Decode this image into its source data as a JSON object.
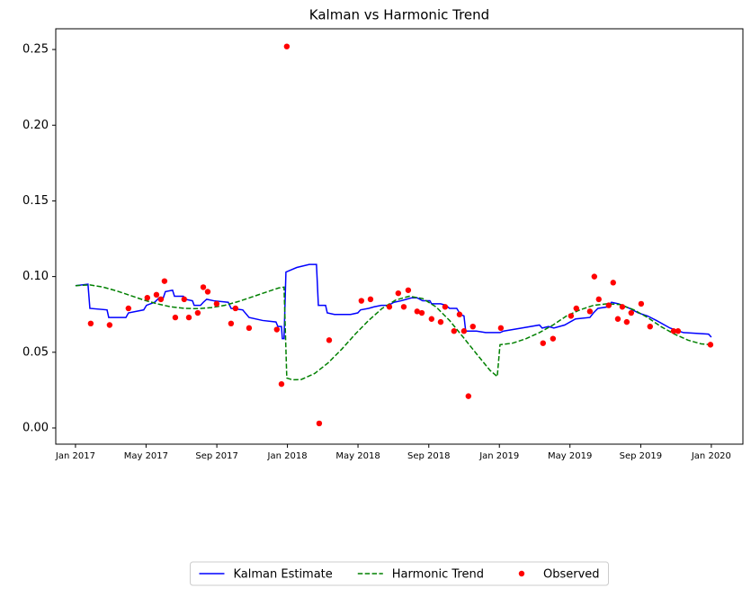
{
  "chart_data": {
    "type": "line",
    "title": "Kalman vs Harmonic Trend",
    "xlim": [
      2016.907,
      2020.149
    ],
    "ylim": [
      -0.0107,
      0.2637
    ],
    "xticks": [
      {
        "value": 2017,
        "label": "Jan 2017"
      },
      {
        "value": 2017.333,
        "label": "May 2017"
      },
      {
        "value": 2017.667,
        "label": "Sep 2017"
      },
      {
        "value": 2018,
        "label": "Jan 2018"
      },
      {
        "value": 2018.333,
        "label": "May 2018"
      },
      {
        "value": 2018.667,
        "label": "Sep 2018"
      },
      {
        "value": 2019,
        "label": "Jan 2019"
      },
      {
        "value": 2019.333,
        "label": "May 2019"
      },
      {
        "value": 2019.667,
        "label": "Sep 2019"
      },
      {
        "value": 2020,
        "label": "Jan 2020"
      }
    ],
    "yticks": [
      {
        "value": 0,
        "label": "0.00"
      },
      0.05,
      {
        "value": 0.1,
        "label": "0.10"
      },
      0.15,
      {
        "value": 0.2,
        "label": "0.20"
      },
      0.25
    ],
    "legend": "lower center",
    "series": [
      {
        "name": "Kalman Estimate",
        "type": "line",
        "color": "#0000ff",
        "dash": "solid",
        "x": [
          2017.0,
          2017.059,
          2017.068,
          2017.149,
          2017.157,
          2017.238,
          2017.25,
          2017.322,
          2017.335,
          2017.373,
          2017.395,
          2017.412,
          2017.424,
          2017.458,
          2017.467,
          2017.509,
          2017.518,
          2017.552,
          2017.56,
          2017.59,
          2017.603,
          2017.619,
          2017.653,
          2017.721,
          2017.734,
          2017.789,
          2017.819,
          2017.883,
          2017.946,
          2017.955,
          2017.972,
          2017.976,
          2017.984,
          2017.993,
          2018.044,
          2018.103,
          2018.137,
          2018.146,
          2018.18,
          2018.188,
          2018.222,
          2018.298,
          2018.332,
          2018.345,
          2018.383,
          2018.409,
          2018.443,
          2018.477,
          2018.502,
          2018.536,
          2018.561,
          2018.587,
          2018.612,
          2018.638,
          2018.672,
          2018.68,
          2018.723,
          2018.748,
          2018.765,
          2018.799,
          2018.816,
          2018.833,
          2018.841,
          2018.892,
          2018.935,
          2019.003,
          2019.02,
          2019.105,
          2019.189,
          2019.202,
          2019.232,
          2019.257,
          2019.308,
          2019.359,
          2019.427,
          2019.444,
          2019.465,
          2019.512,
          2019.529,
          2019.563,
          2019.614,
          2019.656,
          2019.699,
          2019.741,
          2019.805,
          2019.868,
          2019.987,
          2020.0
        ],
        "values": [
          0.094,
          0.095,
          0.079,
          0.078,
          0.073,
          0.073,
          0.076,
          0.078,
          0.081,
          0.083,
          0.086,
          0.085,
          0.09,
          0.091,
          0.087,
          0.087,
          0.085,
          0.084,
          0.081,
          0.081,
          0.083,
          0.085,
          0.084,
          0.083,
          0.079,
          0.078,
          0.073,
          0.071,
          0.07,
          0.067,
          0.067,
          0.059,
          0.059,
          0.103,
          0.106,
          0.108,
          0.108,
          0.081,
          0.081,
          0.076,
          0.075,
          0.075,
          0.076,
          0.078,
          0.079,
          0.08,
          0.081,
          0.081,
          0.083,
          0.084,
          0.085,
          0.086,
          0.086,
          0.084,
          0.084,
          0.082,
          0.082,
          0.081,
          0.079,
          0.079,
          0.075,
          0.074,
          0.064,
          0.064,
          0.063,
          0.063,
          0.064,
          0.066,
          0.068,
          0.066,
          0.067,
          0.066,
          0.068,
          0.072,
          0.073,
          0.076,
          0.079,
          0.08,
          0.083,
          0.082,
          0.079,
          0.076,
          0.074,
          0.071,
          0.066,
          0.063,
          0.062,
          0.06
        ]
      },
      {
        "name": "Harmonic Trend",
        "type": "line",
        "color": "#008000",
        "dash": "dashed",
        "x": [
          2017.0,
          2017.068,
          2017.132,
          2017.195,
          2017.259,
          2017.322,
          2017.386,
          2017.45,
          2017.513,
          2017.577,
          2017.641,
          2017.704,
          2017.768,
          2017.832,
          2017.895,
          2017.959,
          2017.984,
          2017.997,
          2018.023,
          2018.065,
          2018.129,
          2018.192,
          2018.256,
          2018.32,
          2018.383,
          2018.447,
          2018.511,
          2018.574,
          2018.638,
          2018.701,
          2018.765,
          2018.829,
          2018.892,
          2018.956,
          2018.99,
          2019.003,
          2019.062,
          2019.126,
          2019.189,
          2019.253,
          2019.317,
          2019.38,
          2019.444,
          2019.508,
          2019.571,
          2019.635,
          2019.699,
          2019.762,
          2019.826,
          2019.89,
          2019.953,
          2020.0
        ],
        "values": [
          0.094,
          0.0945,
          0.093,
          0.0905,
          0.0875,
          0.0845,
          0.082,
          0.08,
          0.079,
          0.0788,
          0.0795,
          0.081,
          0.0835,
          0.0865,
          0.0895,
          0.0925,
          0.093,
          0.033,
          0.0318,
          0.032,
          0.036,
          0.043,
          0.052,
          0.062,
          0.071,
          0.079,
          0.0845,
          0.087,
          0.0855,
          0.08,
          0.071,
          0.06,
          0.049,
          0.038,
          0.034,
          0.055,
          0.056,
          0.059,
          0.063,
          0.068,
          0.074,
          0.078,
          0.081,
          0.082,
          0.0815,
          0.078,
          0.073,
          0.067,
          0.062,
          0.058,
          0.0555,
          0.055
        ]
      },
      {
        "name": "Observed",
        "type": "scatter",
        "color": "#ff0000",
        "x": [
          2017.072,
          2017.161,
          2017.25,
          2017.339,
          2017.382,
          2017.403,
          2017.42,
          2017.471,
          2017.513,
          2017.535,
          2017.577,
          2017.603,
          2017.624,
          2017.666,
          2017.734,
          2017.755,
          2017.819,
          2017.95,
          2017.972,
          2017.997,
          2018.15,
          2018.197,
          2018.349,
          2018.392,
          2018.481,
          2018.523,
          2018.549,
          2018.57,
          2018.612,
          2018.634,
          2018.68,
          2018.723,
          2018.744,
          2018.786,
          2018.812,
          2018.833,
          2018.854,
          2018.875,
          2019.007,
          2019.206,
          2019.253,
          2019.338,
          2019.363,
          2019.427,
          2019.448,
          2019.469,
          2019.516,
          2019.537,
          2019.559,
          2019.58,
          2019.601,
          2019.622,
          2019.669,
          2019.711,
          2019.822,
          2019.843,
          2019.996
        ],
        "values": [
          0.069,
          0.068,
          0.079,
          0.086,
          0.088,
          0.085,
          0.097,
          0.073,
          0.085,
          0.073,
          0.076,
          0.093,
          0.09,
          0.082,
          0.069,
          0.079,
          0.066,
          0.065,
          0.029,
          0.252,
          0.003,
          0.058,
          0.084,
          0.085,
          0.08,
          0.089,
          0.08,
          0.091,
          0.077,
          0.076,
          0.072,
          0.07,
          0.08,
          0.064,
          0.075,
          0.064,
          0.021,
          0.067,
          0.066,
          0.056,
          0.059,
          0.074,
          0.079,
          0.077,
          0.1,
          0.085,
          0.081,
          0.096,
          0.072,
          0.08,
          0.07,
          0.076,
          0.082,
          0.067,
          0.064,
          0.064,
          0.055
        ]
      }
    ]
  }
}
